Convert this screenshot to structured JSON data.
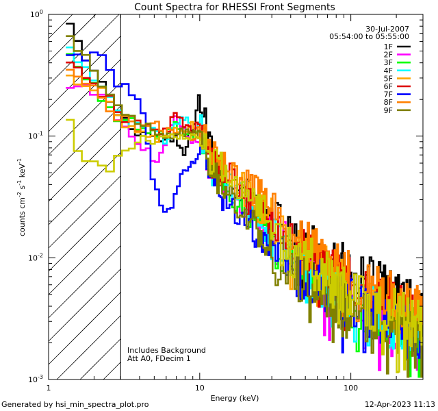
{
  "chart_data": {
    "type": "line",
    "title": "Count Spectra for RHESSI Front Segments",
    "xlabel": "Energy (keV)",
    "ylabel": "counts cm",
    "ylabel_sup1": "-2",
    "ylabel_mid": " s",
    "ylabel_sup2": "-1",
    "ylabel_end": " keV",
    "ylabel_sup3": "-1",
    "xscale": "log",
    "yscale": "log",
    "xlim": [
      1,
      300
    ],
    "ylim": [
      0.001,
      1
    ],
    "x_ticks": [
      {
        "value": 1,
        "label": "1"
      },
      {
        "value": 10,
        "label": "10"
      },
      {
        "value": 100,
        "label": "100"
      }
    ],
    "y_ticks": [
      {
        "value": 0.001,
        "base": "10",
        "exp": "-3"
      },
      {
        "value": 0.01,
        "base": "10",
        "exp": "-2"
      },
      {
        "value": 0.1,
        "base": "10",
        "exp": "-1"
      },
      {
        "value": 1,
        "base": "10",
        "exp": "0"
      }
    ],
    "date": "30-Jul-2007",
    "time_range": "05:54:00 to 05:55:00",
    "hatch_region_max_energy": 3,
    "annotations": [
      "Includes Background",
      "Att A0, FDecim 1"
    ],
    "legend_position": "top-right",
    "series": [
      {
        "name": "1F",
        "color": "#000000",
        "anchors": [
          [
            1.3,
            1.0
          ],
          [
            1.6,
            0.5
          ],
          [
            2.1,
            0.3
          ],
          [
            3,
            0.14
          ],
          [
            4,
            0.11
          ],
          [
            5,
            0.1
          ],
          [
            6,
            0.09
          ],
          [
            7,
            0.09
          ],
          [
            8,
            0.07
          ],
          [
            9,
            0.12
          ],
          [
            9.9,
            0.21
          ],
          [
            11,
            0.12
          ],
          [
            13,
            0.055
          ],
          [
            17,
            0.042
          ],
          [
            25,
            0.025
          ],
          [
            40,
            0.014
          ],
          [
            60,
            0.011
          ],
          [
            100,
            0.0075
          ],
          [
            150,
            0.006
          ],
          [
            200,
            0.005
          ],
          [
            250,
            0.004
          ],
          [
            300,
            0.003
          ]
        ]
      },
      {
        "name": "2F",
        "color": "#ff00ff",
        "anchors": [
          [
            1.3,
            0.24
          ],
          [
            1.8,
            0.24
          ],
          [
            2.5,
            0.21
          ],
          [
            3,
            0.13
          ],
          [
            4,
            0.08
          ],
          [
            5,
            0.065
          ],
          [
            6,
            0.08
          ],
          [
            7,
            0.14
          ],
          [
            8,
            0.1
          ],
          [
            9,
            0.08
          ],
          [
            10,
            0.1
          ],
          [
            12,
            0.05
          ],
          [
            15,
            0.045
          ],
          [
            20,
            0.028
          ],
          [
            30,
            0.016
          ],
          [
            50,
            0.009
          ],
          [
            80,
            0.0055
          ],
          [
            120,
            0.004
          ],
          [
            180,
            0.003
          ],
          [
            250,
            0.0025
          ],
          [
            300,
            0.0015
          ]
        ]
      },
      {
        "name": "3F",
        "color": "#00ff00",
        "anchors": [
          [
            1.3,
            0.5
          ],
          [
            1.6,
            0.35
          ],
          [
            2,
            0.25
          ],
          [
            3,
            0.14
          ],
          [
            4,
            0.12
          ],
          [
            5,
            0.1
          ],
          [
            6,
            0.11
          ],
          [
            7,
            0.12
          ],
          [
            8,
            0.1
          ],
          [
            9,
            0.1
          ],
          [
            10,
            0.11
          ],
          [
            12,
            0.05
          ],
          [
            15,
            0.04
          ],
          [
            20,
            0.025
          ],
          [
            30,
            0.014
          ],
          [
            50,
            0.007
          ],
          [
            80,
            0.005
          ],
          [
            120,
            0.0038
          ],
          [
            180,
            0.003
          ],
          [
            250,
            0.0025
          ],
          [
            300,
            0.002
          ]
        ]
      },
      {
        "name": "4F",
        "color": "#00ffff",
        "anchors": [
          [
            1.3,
            0.56
          ],
          [
            1.6,
            0.4
          ],
          [
            2.2,
            0.25
          ],
          [
            3,
            0.14
          ],
          [
            4,
            0.12
          ],
          [
            5,
            0.11
          ],
          [
            6,
            0.09
          ],
          [
            7,
            0.12
          ],
          [
            8,
            0.15
          ],
          [
            9,
            0.1
          ],
          [
            10,
            0.12
          ],
          [
            12,
            0.055
          ],
          [
            15,
            0.045
          ],
          [
            20,
            0.03
          ],
          [
            30,
            0.015
          ],
          [
            50,
            0.008
          ],
          [
            80,
            0.0055
          ],
          [
            120,
            0.004
          ],
          [
            180,
            0.003
          ],
          [
            250,
            0.0028
          ],
          [
            300,
            0.002
          ]
        ]
      },
      {
        "name": "5F",
        "color": "#ffa500",
        "anchors": [
          [
            1.3,
            0.3
          ],
          [
            1.7,
            0.28
          ],
          [
            2.3,
            0.25
          ],
          [
            3,
            0.13
          ],
          [
            4,
            0.11
          ],
          [
            5,
            0.1
          ],
          [
            6,
            0.1
          ],
          [
            7,
            0.11
          ],
          [
            8,
            0.1
          ],
          [
            9,
            0.12
          ],
          [
            10,
            0.1
          ],
          [
            12,
            0.06
          ],
          [
            15,
            0.05
          ],
          [
            20,
            0.035
          ],
          [
            30,
            0.02
          ],
          [
            50,
            0.011
          ],
          [
            80,
            0.007
          ],
          [
            120,
            0.005
          ],
          [
            180,
            0.004
          ],
          [
            250,
            0.003
          ],
          [
            300,
            0.0025
          ]
        ]
      },
      {
        "name": "6F",
        "color": "#dd0000",
        "anchors": [
          [
            1.3,
            0.4
          ],
          [
            1.6,
            0.32
          ],
          [
            2.2,
            0.24
          ],
          [
            3,
            0.15
          ],
          [
            4,
            0.12
          ],
          [
            5,
            0.12
          ],
          [
            6,
            0.11
          ],
          [
            7,
            0.15
          ],
          [
            8,
            0.12
          ],
          [
            9,
            0.11
          ],
          [
            10,
            0.12
          ],
          [
            12,
            0.06
          ],
          [
            15,
            0.05
          ],
          [
            20,
            0.033
          ],
          [
            30,
            0.019
          ],
          [
            50,
            0.011
          ],
          [
            80,
            0.007
          ],
          [
            120,
            0.0055
          ],
          [
            180,
            0.0045
          ],
          [
            250,
            0.0035
          ],
          [
            300,
            0.003
          ]
        ]
      },
      {
        "name": "7F",
        "color": "#0000ff",
        "anchors": [
          [
            1.3,
            0.42
          ],
          [
            1.7,
            0.45
          ],
          [
            2,
            0.52
          ],
          [
            2.4,
            0.4
          ],
          [
            2.8,
            0.28
          ],
          [
            3.2,
            0.24
          ],
          [
            3.8,
            0.22
          ],
          [
            4.4,
            0.13
          ],
          [
            5,
            0.04
          ],
          [
            5.5,
            0.03
          ],
          [
            6,
            0.02
          ],
          [
            6.8,
            0.03
          ],
          [
            7.5,
            0.045
          ],
          [
            8.3,
            0.05
          ],
          [
            9,
            0.06
          ],
          [
            10,
            0.08
          ],
          [
            11,
            0.06
          ],
          [
            12,
            0.045
          ],
          [
            15,
            0.03
          ],
          [
            20,
            0.02
          ],
          [
            30,
            0.012
          ],
          [
            50,
            0.007
          ],
          [
            80,
            0.0048
          ],
          [
            120,
            0.0038
          ],
          [
            180,
            0.003
          ],
          [
            250,
            0.0025
          ],
          [
            300,
            0.002
          ]
        ]
      },
      {
        "name": "8F",
        "color": "#ff8000",
        "anchors": [
          [
            1.3,
            0.33
          ],
          [
            1.6,
            0.3
          ],
          [
            2.2,
            0.22
          ],
          [
            3,
            0.14
          ],
          [
            4,
            0.12
          ],
          [
            5,
            0.12
          ],
          [
            6,
            0.11
          ],
          [
            7,
            0.1
          ],
          [
            8,
            0.11
          ],
          [
            9,
            0.1
          ],
          [
            10,
            0.12
          ],
          [
            12,
            0.07
          ],
          [
            15,
            0.06
          ],
          [
            20,
            0.045
          ],
          [
            30,
            0.025
          ],
          [
            50,
            0.013
          ],
          [
            80,
            0.008
          ],
          [
            120,
            0.006
          ],
          [
            180,
            0.005
          ],
          [
            250,
            0.004
          ],
          [
            300,
            0.0032
          ]
        ]
      },
      {
        "name": "9F",
        "color": "#808000",
        "anchors": [
          [
            1.3,
            0.65
          ],
          [
            1.6,
            0.5
          ],
          [
            2.2,
            0.3
          ],
          [
            3,
            0.15
          ],
          [
            4,
            0.12
          ],
          [
            5,
            0.11
          ],
          [
            6,
            0.1
          ],
          [
            7,
            0.1
          ],
          [
            8,
            0.11
          ],
          [
            9,
            0.1
          ],
          [
            10,
            0.1
          ],
          [
            12,
            0.05
          ],
          [
            15,
            0.04
          ],
          [
            20,
            0.022
          ],
          [
            30,
            0.012
          ],
          [
            50,
            0.006
          ],
          [
            80,
            0.0045
          ],
          [
            120,
            0.0035
          ],
          [
            180,
            0.0028
          ],
          [
            250,
            0.0023
          ],
          [
            300,
            0.002
          ]
        ]
      },
      {
        "name": "",
        "color": "#cccc00",
        "anchors": [
          [
            1.3,
            0.15
          ],
          [
            1.6,
            0.075
          ],
          [
            2,
            0.055
          ],
          [
            2.5,
            0.055
          ],
          [
            3,
            0.07
          ],
          [
            3.5,
            0.08
          ],
          [
            4,
            0.1
          ],
          [
            5,
            0.09
          ],
          [
            6,
            0.1
          ],
          [
            8,
            0.09
          ],
          [
            10,
            0.1
          ],
          [
            12,
            0.06
          ],
          [
            15,
            0.05
          ],
          [
            20,
            0.035
          ],
          [
            30,
            0.02
          ],
          [
            50,
            0.01
          ],
          [
            80,
            0.006
          ],
          [
            120,
            0.0045
          ],
          [
            180,
            0.0035
          ],
          [
            250,
            0.003
          ],
          [
            300,
            0.0028
          ]
        ]
      }
    ]
  },
  "footer": {
    "generated_by": "Generated by hsi_min_spectra_plot.pro",
    "timestamp": "12-Apr-2023 11:13"
  }
}
